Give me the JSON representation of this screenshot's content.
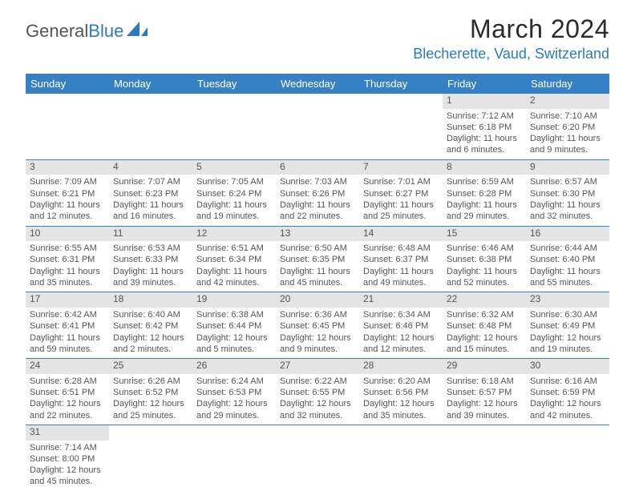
{
  "logo": {
    "word1": "General",
    "word2": "Blue"
  },
  "title": "March 2024",
  "location": "Blecherette, Vaud, Switzerland",
  "accent_color": "#3681c3",
  "day_headers": [
    "Sunday",
    "Monday",
    "Tuesday",
    "Wednesday",
    "Thursday",
    "Friday",
    "Saturday"
  ],
  "weeks": [
    [
      {
        "n": "",
        "lines": []
      },
      {
        "n": "",
        "lines": []
      },
      {
        "n": "",
        "lines": []
      },
      {
        "n": "",
        "lines": []
      },
      {
        "n": "",
        "lines": []
      },
      {
        "n": "1",
        "lines": [
          "Sunrise: 7:12 AM",
          "Sunset: 6:18 PM",
          "Daylight: 11 hours and 6 minutes."
        ]
      },
      {
        "n": "2",
        "lines": [
          "Sunrise: 7:10 AM",
          "Sunset: 6:20 PM",
          "Daylight: 11 hours and 9 minutes."
        ]
      }
    ],
    [
      {
        "n": "3",
        "lines": [
          "Sunrise: 7:09 AM",
          "Sunset: 6:21 PM",
          "Daylight: 11 hours and 12 minutes."
        ]
      },
      {
        "n": "4",
        "lines": [
          "Sunrise: 7:07 AM",
          "Sunset: 6:23 PM",
          "Daylight: 11 hours and 16 minutes."
        ]
      },
      {
        "n": "5",
        "lines": [
          "Sunrise: 7:05 AM",
          "Sunset: 6:24 PM",
          "Daylight: 11 hours and 19 minutes."
        ]
      },
      {
        "n": "6",
        "lines": [
          "Sunrise: 7:03 AM",
          "Sunset: 6:26 PM",
          "Daylight: 11 hours and 22 minutes."
        ]
      },
      {
        "n": "7",
        "lines": [
          "Sunrise: 7:01 AM",
          "Sunset: 6:27 PM",
          "Daylight: 11 hours and 25 minutes."
        ]
      },
      {
        "n": "8",
        "lines": [
          "Sunrise: 6:59 AM",
          "Sunset: 6:28 PM",
          "Daylight: 11 hours and 29 minutes."
        ]
      },
      {
        "n": "9",
        "lines": [
          "Sunrise: 6:57 AM",
          "Sunset: 6:30 PM",
          "Daylight: 11 hours and 32 minutes."
        ]
      }
    ],
    [
      {
        "n": "10",
        "lines": [
          "Sunrise: 6:55 AM",
          "Sunset: 6:31 PM",
          "Daylight: 11 hours and 35 minutes."
        ]
      },
      {
        "n": "11",
        "lines": [
          "Sunrise: 6:53 AM",
          "Sunset: 6:33 PM",
          "Daylight: 11 hours and 39 minutes."
        ]
      },
      {
        "n": "12",
        "lines": [
          "Sunrise: 6:51 AM",
          "Sunset: 6:34 PM",
          "Daylight: 11 hours and 42 minutes."
        ]
      },
      {
        "n": "13",
        "lines": [
          "Sunrise: 6:50 AM",
          "Sunset: 6:35 PM",
          "Daylight: 11 hours and 45 minutes."
        ]
      },
      {
        "n": "14",
        "lines": [
          "Sunrise: 6:48 AM",
          "Sunset: 6:37 PM",
          "Daylight: 11 hours and 49 minutes."
        ]
      },
      {
        "n": "15",
        "lines": [
          "Sunrise: 6:46 AM",
          "Sunset: 6:38 PM",
          "Daylight: 11 hours and 52 minutes."
        ]
      },
      {
        "n": "16",
        "lines": [
          "Sunrise: 6:44 AM",
          "Sunset: 6:40 PM",
          "Daylight: 11 hours and 55 minutes."
        ]
      }
    ],
    [
      {
        "n": "17",
        "lines": [
          "Sunrise: 6:42 AM",
          "Sunset: 6:41 PM",
          "Daylight: 11 hours and 59 minutes."
        ]
      },
      {
        "n": "18",
        "lines": [
          "Sunrise: 6:40 AM",
          "Sunset: 6:42 PM",
          "Daylight: 12 hours and 2 minutes."
        ]
      },
      {
        "n": "19",
        "lines": [
          "Sunrise: 6:38 AM",
          "Sunset: 6:44 PM",
          "Daylight: 12 hours and 5 minutes."
        ]
      },
      {
        "n": "20",
        "lines": [
          "Sunrise: 6:36 AM",
          "Sunset: 6:45 PM",
          "Daylight: 12 hours and 9 minutes."
        ]
      },
      {
        "n": "21",
        "lines": [
          "Sunrise: 6:34 AM",
          "Sunset: 6:46 PM",
          "Daylight: 12 hours and 12 minutes."
        ]
      },
      {
        "n": "22",
        "lines": [
          "Sunrise: 6:32 AM",
          "Sunset: 6:48 PM",
          "Daylight: 12 hours and 15 minutes."
        ]
      },
      {
        "n": "23",
        "lines": [
          "Sunrise: 6:30 AM",
          "Sunset: 6:49 PM",
          "Daylight: 12 hours and 19 minutes."
        ]
      }
    ],
    [
      {
        "n": "24",
        "lines": [
          "Sunrise: 6:28 AM",
          "Sunset: 6:51 PM",
          "Daylight: 12 hours and 22 minutes."
        ]
      },
      {
        "n": "25",
        "lines": [
          "Sunrise: 6:26 AM",
          "Sunset: 6:52 PM",
          "Daylight: 12 hours and 25 minutes."
        ]
      },
      {
        "n": "26",
        "lines": [
          "Sunrise: 6:24 AM",
          "Sunset: 6:53 PM",
          "Daylight: 12 hours and 29 minutes."
        ]
      },
      {
        "n": "27",
        "lines": [
          "Sunrise: 6:22 AM",
          "Sunset: 6:55 PM",
          "Daylight: 12 hours and 32 minutes."
        ]
      },
      {
        "n": "28",
        "lines": [
          "Sunrise: 6:20 AM",
          "Sunset: 6:56 PM",
          "Daylight: 12 hours and 35 minutes."
        ]
      },
      {
        "n": "29",
        "lines": [
          "Sunrise: 6:18 AM",
          "Sunset: 6:57 PM",
          "Daylight: 12 hours and 39 minutes."
        ]
      },
      {
        "n": "30",
        "lines": [
          "Sunrise: 6:16 AM",
          "Sunset: 6:59 PM",
          "Daylight: 12 hours and 42 minutes."
        ]
      }
    ],
    [
      {
        "n": "31",
        "lines": [
          "Sunrise: 7:14 AM",
          "Sunset: 8:00 PM",
          "Daylight: 12 hours and 45 minutes."
        ]
      },
      {
        "n": "",
        "lines": []
      },
      {
        "n": "",
        "lines": []
      },
      {
        "n": "",
        "lines": []
      },
      {
        "n": "",
        "lines": []
      },
      {
        "n": "",
        "lines": []
      },
      {
        "n": "",
        "lines": []
      }
    ]
  ]
}
